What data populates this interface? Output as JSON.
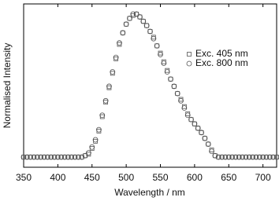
{
  "chart_data": {
    "type": "scatter",
    "x_label": "Wavelength / nm",
    "y_label": "Normalised Intensity",
    "x": [
      350,
      355,
      360,
      365,
      370,
      375,
      380,
      385,
      390,
      395,
      400,
      405,
      410,
      415,
      420,
      425,
      430,
      435,
      440,
      445,
      450,
      455,
      460,
      465,
      470,
      475,
      480,
      485,
      490,
      495,
      500,
      505,
      510,
      515,
      520,
      525,
      530,
      535,
      540,
      545,
      550,
      555,
      560,
      565,
      570,
      575,
      580,
      585,
      590,
      595,
      600,
      605,
      610,
      615,
      620,
      625,
      630,
      635,
      640,
      645,
      650,
      655,
      660,
      665,
      670,
      675,
      680,
      685,
      690,
      695,
      700,
      705,
      710,
      715,
      720
    ],
    "series": [
      {
        "name": "Exc. 405 nm",
        "marker": "square",
        "color": "#555555",
        "values": [
          0.01,
          0.01,
          0.01,
          0.01,
          0.01,
          0.01,
          0.01,
          0.01,
          0.01,
          0.01,
          0.01,
          0.01,
          0.01,
          0.01,
          0.01,
          0.01,
          0.01,
          0.01,
          0.02,
          0.03,
          0.07,
          0.12,
          0.19,
          0.29,
          0.39,
          0.49,
          0.59,
          0.69,
          0.79,
          0.87,
          0.93,
          0.97,
          0.99,
          1.0,
          0.98,
          0.95,
          0.92,
          0.88,
          0.84,
          0.78,
          0.73,
          0.67,
          0.61,
          0.55,
          0.5,
          0.45,
          0.41,
          0.36,
          0.31,
          0.27,
          0.24,
          0.21,
          0.18,
          0.14,
          0.1,
          0.06,
          0.02,
          0.01,
          0.01,
          0.01,
          0.01,
          0.01,
          0.01,
          0.01,
          0.01,
          0.01,
          0.01,
          0.01,
          0.01,
          0.01,
          0.01,
          0.01,
          0.01,
          0.01,
          0.01
        ]
      },
      {
        "name": "Exc. 800 nm",
        "marker": "circle",
        "color": "#555555",
        "values": [
          0.01,
          0.01,
          0.01,
          0.01,
          0.01,
          0.01,
          0.01,
          0.01,
          0.01,
          0.01,
          0.01,
          0.01,
          0.01,
          0.01,
          0.01,
          0.01,
          0.01,
          0.01,
          0.02,
          0.04,
          0.08,
          0.13,
          0.2,
          0.3,
          0.4,
          0.5,
          0.6,
          0.7,
          0.8,
          0.87,
          0.93,
          0.97,
          1.0,
          1.0,
          0.98,
          0.95,
          0.92,
          0.88,
          0.83,
          0.78,
          0.72,
          0.66,
          0.6,
          0.55,
          0.5,
          0.45,
          0.4,
          0.35,
          0.3,
          0.27,
          0.24,
          0.21,
          0.18,
          0.14,
          0.1,
          0.05,
          0.02,
          0.01,
          0.01,
          0.01,
          0.01,
          0.01,
          0.01,
          0.01,
          0.01,
          0.01,
          0.01,
          0.01,
          0.01,
          0.01,
          0.01,
          0.01,
          0.01,
          0.01,
          0.01
        ]
      }
    ],
    "xlim": [
      350,
      720
    ],
    "xticks": [
      350,
      400,
      450,
      500,
      550,
      600,
      650,
      700
    ],
    "ylim": [
      -0.06,
      1.07
    ],
    "legend": "upper right"
  }
}
